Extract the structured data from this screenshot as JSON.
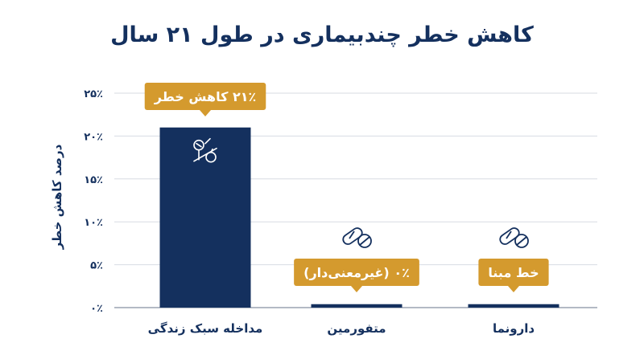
{
  "chart_data": {
    "type": "bar",
    "title": "کاهش خطر چندبیماری در طول ۲۱ سال",
    "ylabel": "درصد کاهش خطر",
    "xlabel": "",
    "ylim": [
      0,
      25
    ],
    "y_ticks": [
      0,
      5,
      10,
      15,
      20,
      25
    ],
    "y_tick_labels": [
      "۰٪",
      "۵٪",
      "۱۰٪",
      "۱۵٪",
      "۲۰٪",
      "۲۵٪"
    ],
    "grid": true,
    "categories": [
      "مداخله سبک زندگی",
      "متفورمین",
      "دارونما"
    ],
    "values": [
      21,
      0.4,
      0.4
    ],
    "callouts": [
      "۲۱٪ کاهش خطر",
      "۰٪ (غیرمعنی‌دار)",
      "خط مبنا"
    ],
    "icons": [
      "lifestyle-icon",
      "pill-icon",
      "pill-icon"
    ]
  },
  "colors": {
    "bar": "#14305e",
    "callout": "#d49a2e",
    "text": "#14305e",
    "grid": "#d7dbe2",
    "icon_stroke": "#14305e"
  }
}
